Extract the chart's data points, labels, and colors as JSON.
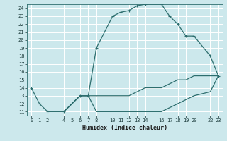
{
  "xlabel": "Humidex (Indice chaleur)",
  "background_color": "#cce8ec",
  "grid_color": "#ffffff",
  "line_color": "#2d6e6e",
  "xlim": [
    -0.5,
    23.5
  ],
  "ylim": [
    10.5,
    24.5
  ],
  "yticks": [
    11,
    12,
    13,
    14,
    15,
    16,
    17,
    18,
    19,
    20,
    21,
    22,
    23,
    24
  ],
  "xticks": [
    0,
    1,
    2,
    4,
    5,
    6,
    7,
    8,
    10,
    11,
    12,
    13,
    14,
    16,
    17,
    18,
    19,
    20,
    22,
    23
  ],
  "curve1_x": [
    0,
    1,
    2,
    4,
    6,
    7,
    8,
    10,
    11,
    12,
    13,
    14,
    16,
    17,
    18,
    19,
    20,
    22,
    23
  ],
  "curve1_y": [
    14,
    12,
    11,
    11,
    13,
    13,
    19,
    23,
    23.5,
    23.7,
    24.3,
    24.5,
    24.5,
    23,
    22,
    20.5,
    20.5,
    18,
    15.5
  ],
  "curve2_x": [
    4,
    6,
    7,
    8,
    10,
    11,
    12,
    13,
    14,
    16,
    17,
    18,
    19,
    20,
    22,
    23
  ],
  "curve2_y": [
    11,
    13,
    13,
    13,
    13,
    13,
    13,
    13.5,
    14,
    14,
    14.5,
    15,
    15,
    15.5,
    15.5,
    15.5
  ],
  "curve3_x": [
    4,
    6,
    7,
    8,
    10,
    11,
    12,
    13,
    14,
    16,
    17,
    18,
    19,
    20,
    22,
    23
  ],
  "curve3_y": [
    11,
    13,
    13,
    11,
    11,
    11,
    11,
    11,
    11,
    11,
    11.5,
    12,
    12.5,
    13,
    13.5,
    15.5
  ]
}
